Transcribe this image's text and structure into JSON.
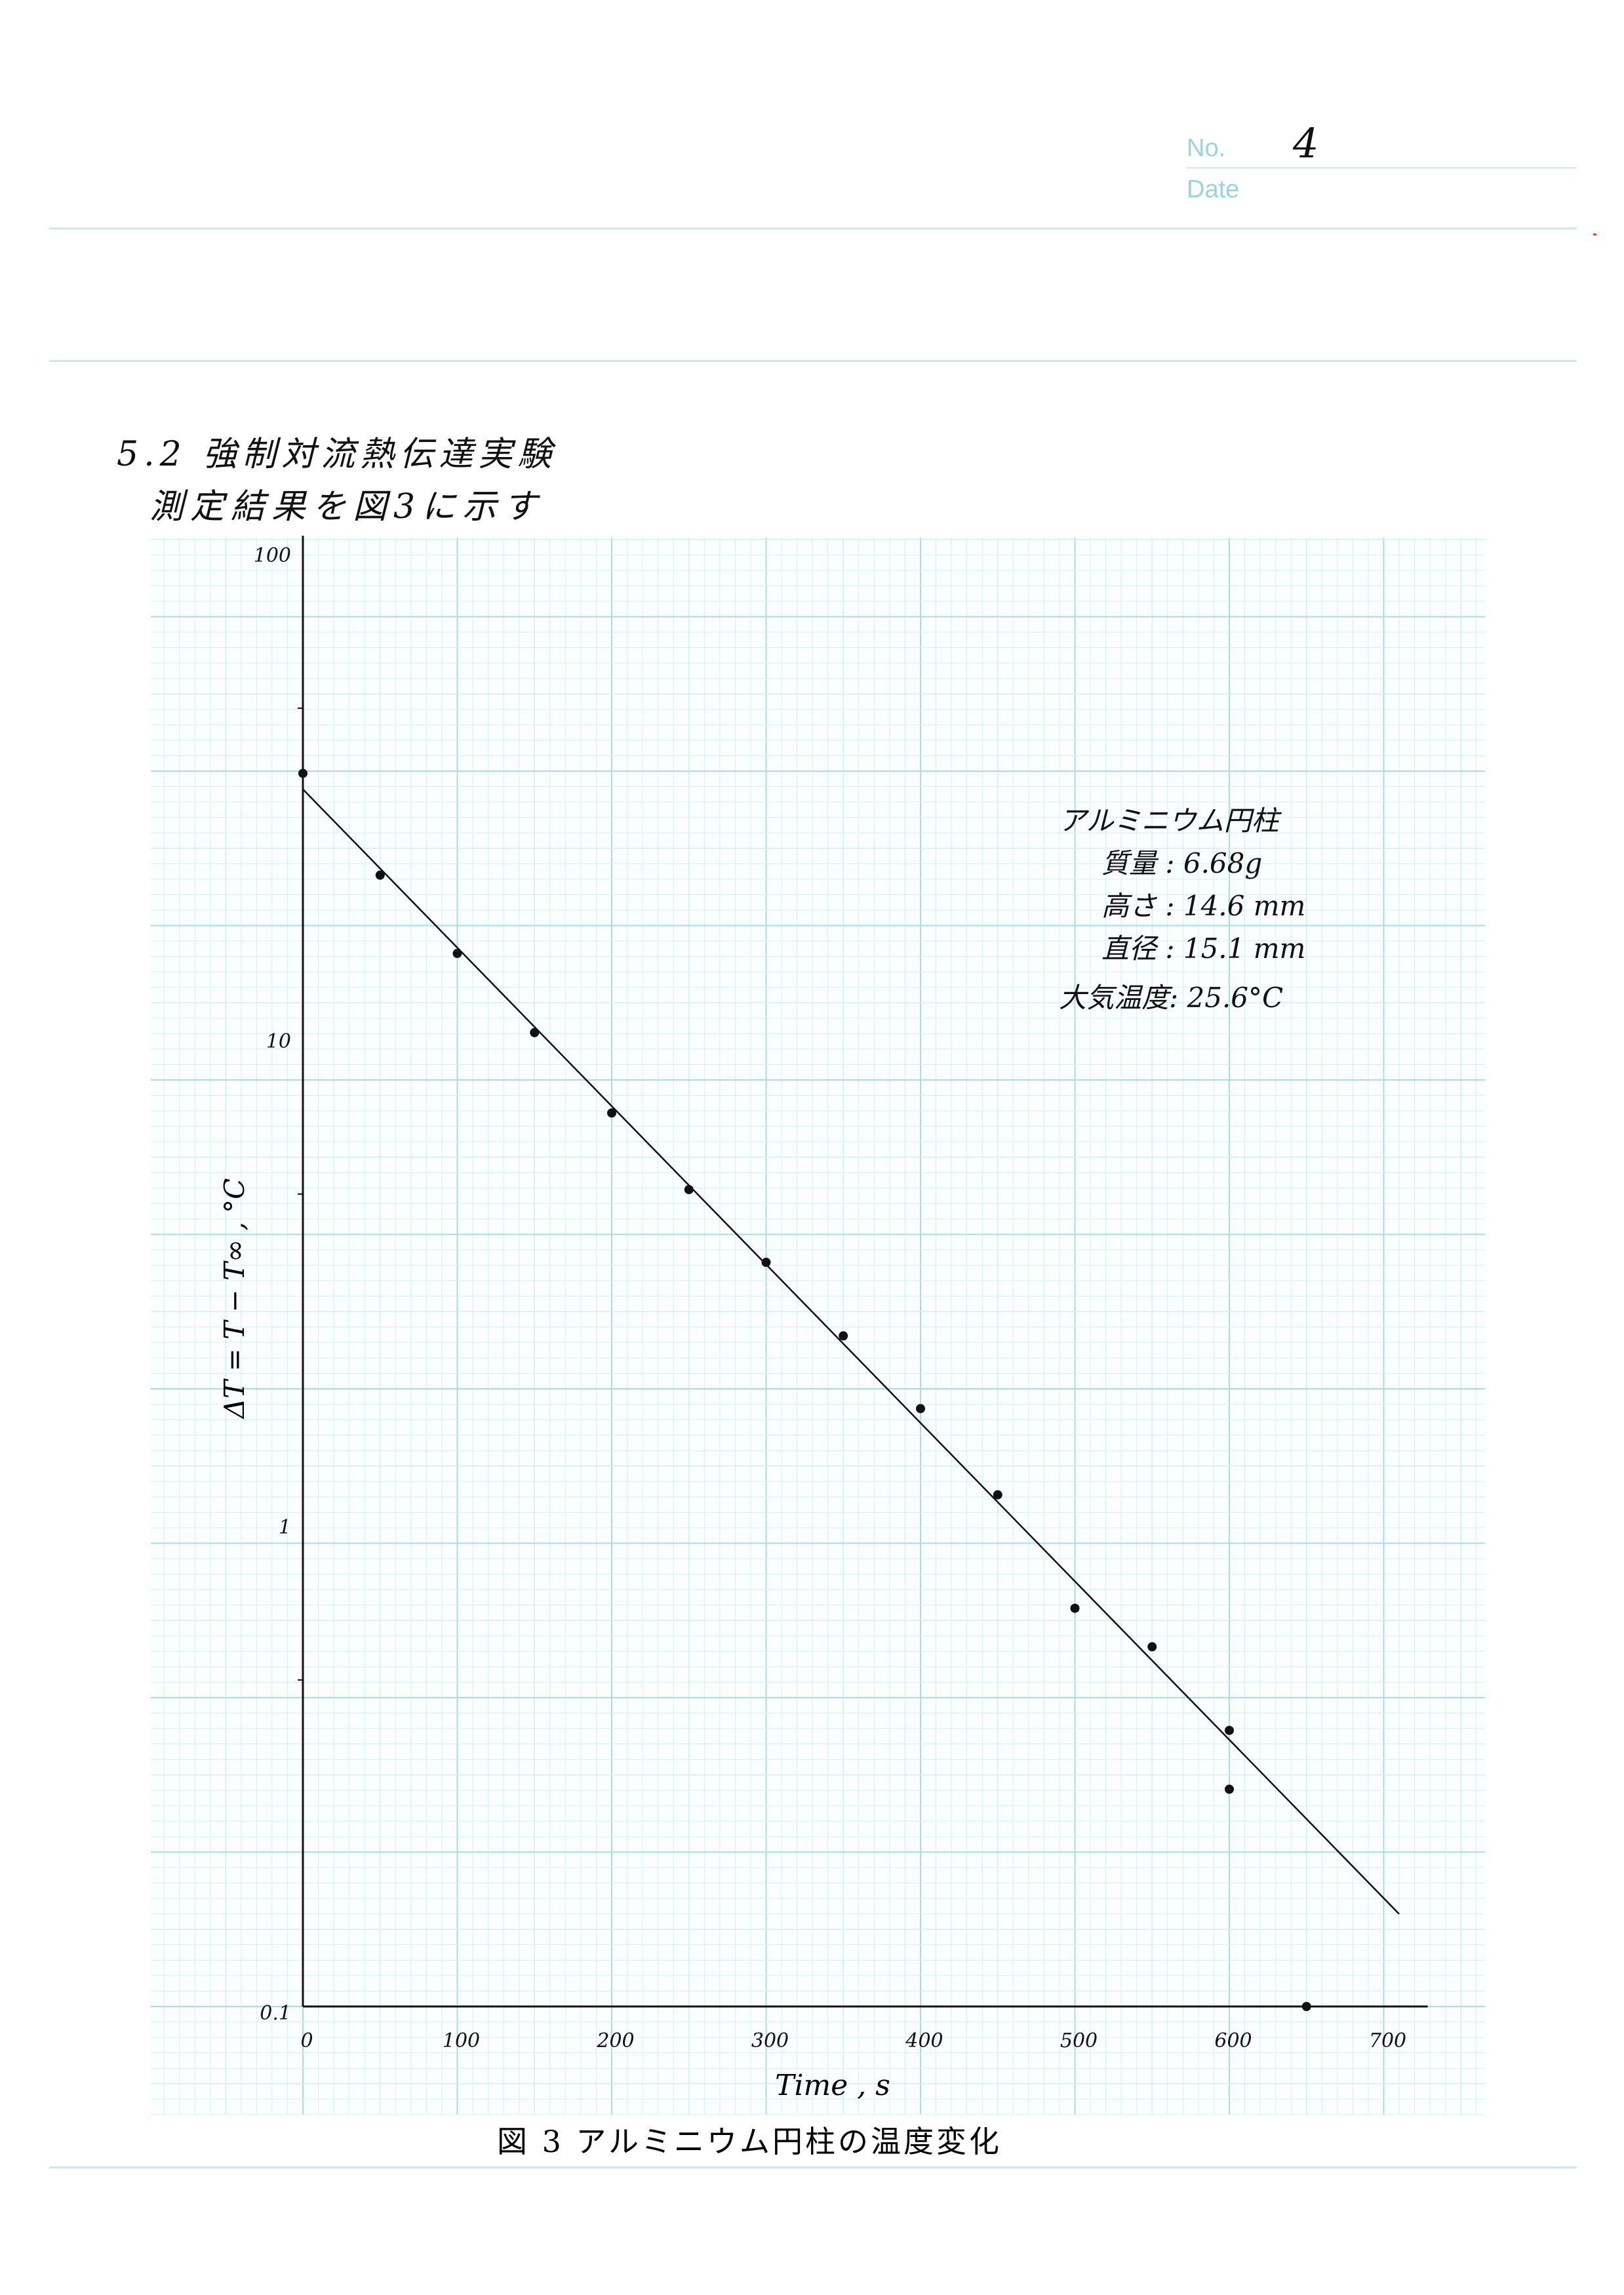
{
  "header": {
    "no_label": "No.",
    "no_value": "4",
    "date_label": "Date"
  },
  "section": {
    "heading": "5.2 強制対流熱伝達実験",
    "subheading": "測定結果を図3に示す"
  },
  "specimen_info": {
    "title": "アルミニウム円柱",
    "mass": "質量 : 6.68g",
    "height": "高さ : 14.6 mm",
    "diameter": "直径 : 15.1 mm",
    "ambient": "大気温度: 25.6°C"
  },
  "chart_data": {
    "type": "scatter",
    "title": "図 3 アルミニウム円柱の温度変化",
    "xlabel": "Time , s",
    "ylabel": "ΔT = T − T∞ , °C",
    "x_ticks": [
      "0",
      "100",
      "200",
      "300",
      "400",
      "500",
      "600",
      "700"
    ],
    "y_ticks": [
      "100",
      "10",
      "1",
      "0.1"
    ],
    "xlim": [
      0,
      720
    ],
    "ylim": [
      0.1,
      100
    ],
    "y_scale": "log",
    "grid": true,
    "series": [
      {
        "points": [
          [
            0,
            34.5
          ],
          [
            50,
            21.3
          ],
          [
            100,
            14.7
          ],
          [
            150,
            10.1
          ],
          [
            200,
            6.9
          ],
          [
            250,
            4.8
          ],
          [
            300,
            3.4
          ],
          [
            350,
            2.4
          ],
          [
            400,
            1.7
          ],
          [
            450,
            1.13
          ],
          [
            500,
            0.66
          ],
          [
            550,
            0.55
          ],
          [
            600,
            0.37
          ],
          [
            600,
            0.28
          ],
          [
            650,
            0.1
          ]
        ]
      }
    ],
    "fit_line": {
      "x": [
        0,
        710
      ],
      "y": [
        32.0,
        0.155
      ]
    },
    "colors": {
      "grid_minor": "#d4eef2",
      "grid_major": "#a9dce6",
      "ink": "#111111"
    }
  }
}
